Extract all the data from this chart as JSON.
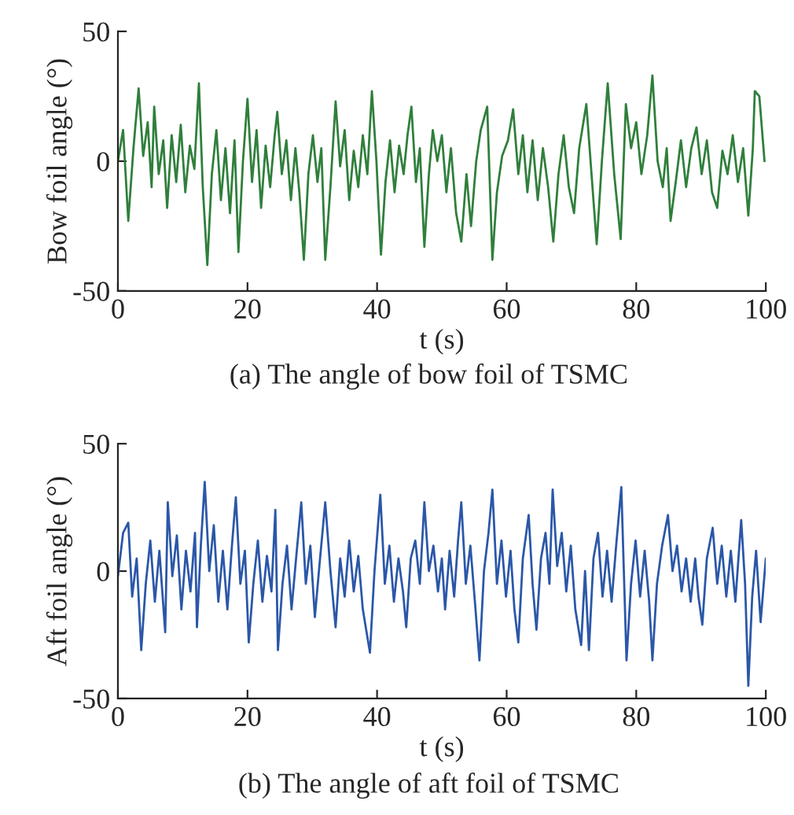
{
  "chart_data": [
    {
      "type": "line",
      "xlabel": "t (s)",
      "ylabel": "Bow foil angle (°)",
      "annotations": [
        "(a) The angle of bow foil of TSMC"
      ],
      "xlim": [
        0,
        100
      ],
      "ylim": [
        -50,
        50
      ],
      "xticks": [
        0,
        20,
        40,
        60,
        80,
        100
      ],
      "yticks": [
        -50,
        0,
        50
      ],
      "grid": false,
      "series": [
        {
          "color": "#2f7f3b",
          "x": [
            0,
            0.8,
            1.6,
            2.4,
            3.2,
            3.9,
            4.6,
            5.2,
            5.6,
            6.3,
            7.0,
            7.6,
            8.3,
            9.0,
            9.7,
            10.4,
            11.1,
            11.8,
            12.5,
            13.1,
            13.8,
            14.5,
            15.2,
            15.9,
            16.6,
            17.3,
            18.0,
            18.6,
            19.3,
            20.0,
            20.7,
            21.4,
            22.1,
            22.8,
            23.5,
            24.2,
            24.6,
            25.3,
            26.0,
            26.7,
            27.4,
            28.0,
            28.7,
            29.4,
            30.1,
            30.8,
            31.4,
            32.0,
            32.8,
            33.6,
            34.3,
            35.0,
            35.7,
            36.4,
            37.1,
            37.8,
            38.5,
            39.2,
            39.9,
            40.6,
            41.3,
            42.0,
            42.7,
            43.4,
            44.1,
            44.7,
            45.3,
            46.0,
            46.6,
            47.3,
            48.0,
            48.6,
            49.3,
            50.0,
            50.7,
            51.4,
            52.2,
            53.0,
            53.8,
            54.5,
            55.3,
            56.0,
            57.0,
            57.8,
            58.5,
            59.3,
            60.2,
            61.0,
            61.8,
            62.5,
            63.2,
            64.0,
            64.8,
            65.6,
            66.4,
            67.2,
            68.0,
            68.8,
            69.6,
            70.4,
            71.2,
            72.3,
            73.1,
            73.9,
            74.7,
            75.6,
            76.6,
            77.6,
            78.4,
            79.2,
            80.0,
            80.8,
            81.7,
            82.5,
            83.3,
            84.1,
            84.7,
            85.3,
            86.1,
            86.9,
            87.7,
            88.5,
            89.3,
            90.1,
            90.9,
            91.7,
            92.5,
            93.3,
            94.1,
            94.9,
            95.7,
            96.5,
            97.3,
            98.0,
            98.3,
            99.0,
            99.8
          ],
          "values": [
            0,
            12,
            -23,
            5,
            28,
            2,
            15,
            -10,
            21,
            -5,
            8,
            -18,
            10,
            -8,
            14,
            -12,
            6,
            -3,
            30,
            -10,
            -40,
            -5,
            12,
            -15,
            5,
            -20,
            8,
            -35,
            0,
            24,
            -8,
            12,
            -18,
            6,
            -10,
            10,
            19,
            -5,
            8,
            -15,
            5,
            -12,
            -38,
            -5,
            10,
            -8,
            5,
            -38,
            -10,
            23,
            -2,
            12,
            -15,
            4,
            -10,
            10,
            -5,
            27,
            0,
            -36,
            -8,
            8,
            -12,
            6,
            -5,
            10,
            21,
            -8,
            5,
            -33,
            -5,
            12,
            0,
            10,
            -12,
            5,
            -20,
            -31,
            -5,
            -25,
            0,
            12,
            21,
            -38,
            -12,
            2,
            8,
            20,
            -5,
            10,
            -12,
            8,
            -15,
            5,
            -10,
            -31,
            -5,
            10,
            -10,
            -20,
            5,
            22,
            -5,
            -32,
            0,
            30,
            -5,
            -30,
            22,
            5,
            15,
            -5,
            10,
            33,
            0,
            -10,
            5,
            -23,
            -8,
            8,
            -10,
            5,
            13,
            -5,
            8,
            -12,
            -18,
            4,
            -5,
            10,
            -8,
            5,
            -21,
            5,
            27,
            25,
            0
          ]
        }
      ]
    },
    {
      "type": "line",
      "xlabel": "t (s)",
      "ylabel": "Aft foil angle (°)",
      "annotations": [
        "(b) The angle of aft foil of TSMC"
      ],
      "xlim": [
        0,
        100
      ],
      "ylim": [
        -50,
        50
      ],
      "xticks": [
        0,
        20,
        40,
        60,
        80,
        100
      ],
      "yticks": [
        -50,
        0,
        50
      ],
      "grid": false,
      "series": [
        {
          "color": "#2b57a8",
          "x": [
            0,
            0.8,
            1.6,
            2.2,
            2.9,
            3.6,
            4.3,
            5.0,
            5.7,
            6.4,
            7.3,
            7.7,
            8.4,
            9.1,
            9.8,
            10.5,
            11.2,
            11.9,
            12.2,
            12.8,
            13.4,
            14.1,
            14.8,
            15.5,
            16.2,
            16.9,
            17.6,
            18.2,
            18.9,
            19.6,
            20.2,
            20.9,
            21.6,
            22.3,
            23.0,
            23.7,
            24.3,
            24.7,
            25.4,
            26.1,
            26.8,
            27.5,
            28.3,
            29.0,
            29.7,
            30.4,
            31.2,
            32.0,
            32.8,
            33.6,
            34.3,
            35.0,
            35.7,
            36.4,
            37.1,
            37.8,
            38.9,
            39.6,
            40.5,
            41.2,
            41.9,
            42.6,
            43.3,
            44.0,
            44.5,
            45.2,
            45.9,
            46.6,
            47.3,
            48.0,
            48.7,
            49.4,
            50.0,
            50.5,
            51.2,
            51.9,
            52.5,
            53.0,
            53.7,
            54.4,
            55.1,
            55.8,
            56.5,
            57.2,
            57.8,
            58.5,
            59.2,
            59.9,
            60.6,
            61.2,
            61.8,
            62.5,
            63.4,
            64.0,
            64.6,
            65.3,
            66.0,
            66.6,
            67.1,
            67.8,
            68.5,
            69.2,
            69.9,
            70.6,
            71.5,
            72.1,
            72.7,
            73.4,
            74.1,
            74.8,
            75.5,
            76.2,
            76.9,
            77.7,
            78.5,
            79.2,
            79.9,
            80.6,
            81.3,
            82.0,
            82.5,
            83.2,
            84.0,
            84.9,
            85.6,
            86.3,
            87.0,
            87.7,
            88.4,
            89.1,
            89.6,
            90.2,
            90.9,
            91.8,
            92.5,
            93.2,
            93.9,
            94.6,
            95.3,
            96.2,
            96.8,
            97.3,
            97.9,
            98.5,
            99.2,
            100.0
          ],
          "values": [
            -2,
            15,
            19,
            -10,
            5,
            -31,
            -5,
            12,
            -12,
            8,
            -24,
            27,
            -2,
            14,
            -15,
            8,
            -8,
            15,
            -22,
            10,
            35,
            0,
            18,
            -12,
            8,
            -15,
            10,
            29,
            -5,
            8,
            -28,
            -5,
            12,
            -12,
            6,
            -8,
            24,
            -31,
            -5,
            10,
            -15,
            5,
            27,
            -5,
            10,
            -18,
            5,
            27,
            0,
            -22,
            5,
            -10,
            12,
            -8,
            6,
            -15,
            -32,
            0,
            30,
            -5,
            10,
            -12,
            5,
            -8,
            -22,
            5,
            12,
            -5,
            27,
            0,
            10,
            -8,
            5,
            -15,
            8,
            -10,
            12,
            27,
            -5,
            10,
            -12,
            -35,
            0,
            15,
            32,
            -5,
            12,
            -10,
            8,
            -15,
            -28,
            5,
            22,
            -5,
            -23,
            5,
            15,
            -5,
            32,
            2,
            15,
            -8,
            10,
            -15,
            -29,
            0,
            -31,
            5,
            15,
            -10,
            8,
            -12,
            10,
            33,
            -35,
            -5,
            12,
            -10,
            8,
            -12,
            -35,
            -5,
            10,
            22,
            0,
            10,
            -8,
            5,
            -12,
            5,
            -10,
            -21,
            5,
            17,
            -5,
            10,
            -10,
            8,
            -12,
            20,
            -5,
            -45,
            -10,
            8,
            -20,
            5
          ]
        }
      ]
    }
  ]
}
